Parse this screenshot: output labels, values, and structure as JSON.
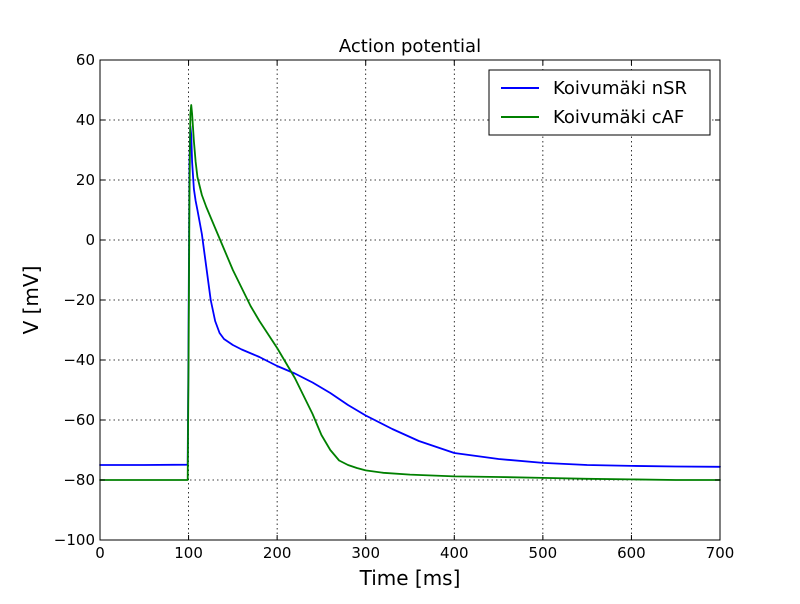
{
  "chart_data": {
    "type": "line",
    "title": "Action potential",
    "xlabel": "Time [ms]",
    "ylabel": "V [mV]",
    "xlim": [
      0,
      700
    ],
    "ylim": [
      -100,
      60
    ],
    "xticks": [
      0,
      100,
      200,
      300,
      400,
      500,
      600,
      700
    ],
    "yticks": [
      -100,
      -80,
      -60,
      -40,
      -20,
      0,
      20,
      40,
      60
    ],
    "xtick_labels": [
      "0",
      "100",
      "200",
      "300",
      "400",
      "500",
      "600",
      "700"
    ],
    "ytick_labels": [
      "−100",
      "−80",
      "−60",
      "−40",
      "−20",
      "0",
      "20",
      "40",
      "60"
    ],
    "grid": true,
    "legend_position": "top-right",
    "series": [
      {
        "name": "Koivumäki nSR",
        "color": "#0000ff",
        "x": [
          0,
          50,
          99,
          100,
          101,
          102,
          103,
          104,
          106,
          108,
          110,
          115,
          120,
          125,
          130,
          135,
          140,
          150,
          160,
          180,
          200,
          220,
          240,
          260,
          280,
          300,
          330,
          360,
          400,
          450,
          500,
          550,
          600,
          650,
          700
        ],
        "y": [
          -75,
          -75,
          -74.9,
          -30,
          25,
          38,
          35,
          26,
          17,
          13,
          10,
          2,
          -9,
          -20,
          -27,
          -31,
          -33,
          -35,
          -36.5,
          -39,
          -42,
          -44.5,
          -47.5,
          -51,
          -55,
          -58.5,
          -63,
          -67,
          -71,
          -73,
          -74.3,
          -75,
          -75.3,
          -75.5,
          -75.6
        ]
      },
      {
        "name": "Koivumäki cAF",
        "color": "#008000",
        "x": [
          0,
          50,
          99,
          100,
          101,
          102,
          103,
          104,
          106,
          108,
          110,
          115,
          120,
          130,
          140,
          150,
          160,
          170,
          180,
          200,
          220,
          230,
          240,
          250,
          260,
          270,
          280,
          290,
          300,
          320,
          350,
          400,
          450,
          500,
          550,
          600,
          650,
          700
        ],
        "y": [
          -80,
          -80,
          -80,
          -40,
          15,
          42,
          45,
          42,
          33,
          26,
          21,
          15,
          11,
          4,
          -3,
          -10,
          -16,
          -22,
          -27,
          -36,
          -46,
          -52,
          -58,
          -65,
          -70,
          -73.5,
          -75,
          -76,
          -76.8,
          -77.6,
          -78.2,
          -78.8,
          -79,
          -79.3,
          -79.6,
          -79.8,
          -80,
          -80
        ]
      }
    ]
  }
}
